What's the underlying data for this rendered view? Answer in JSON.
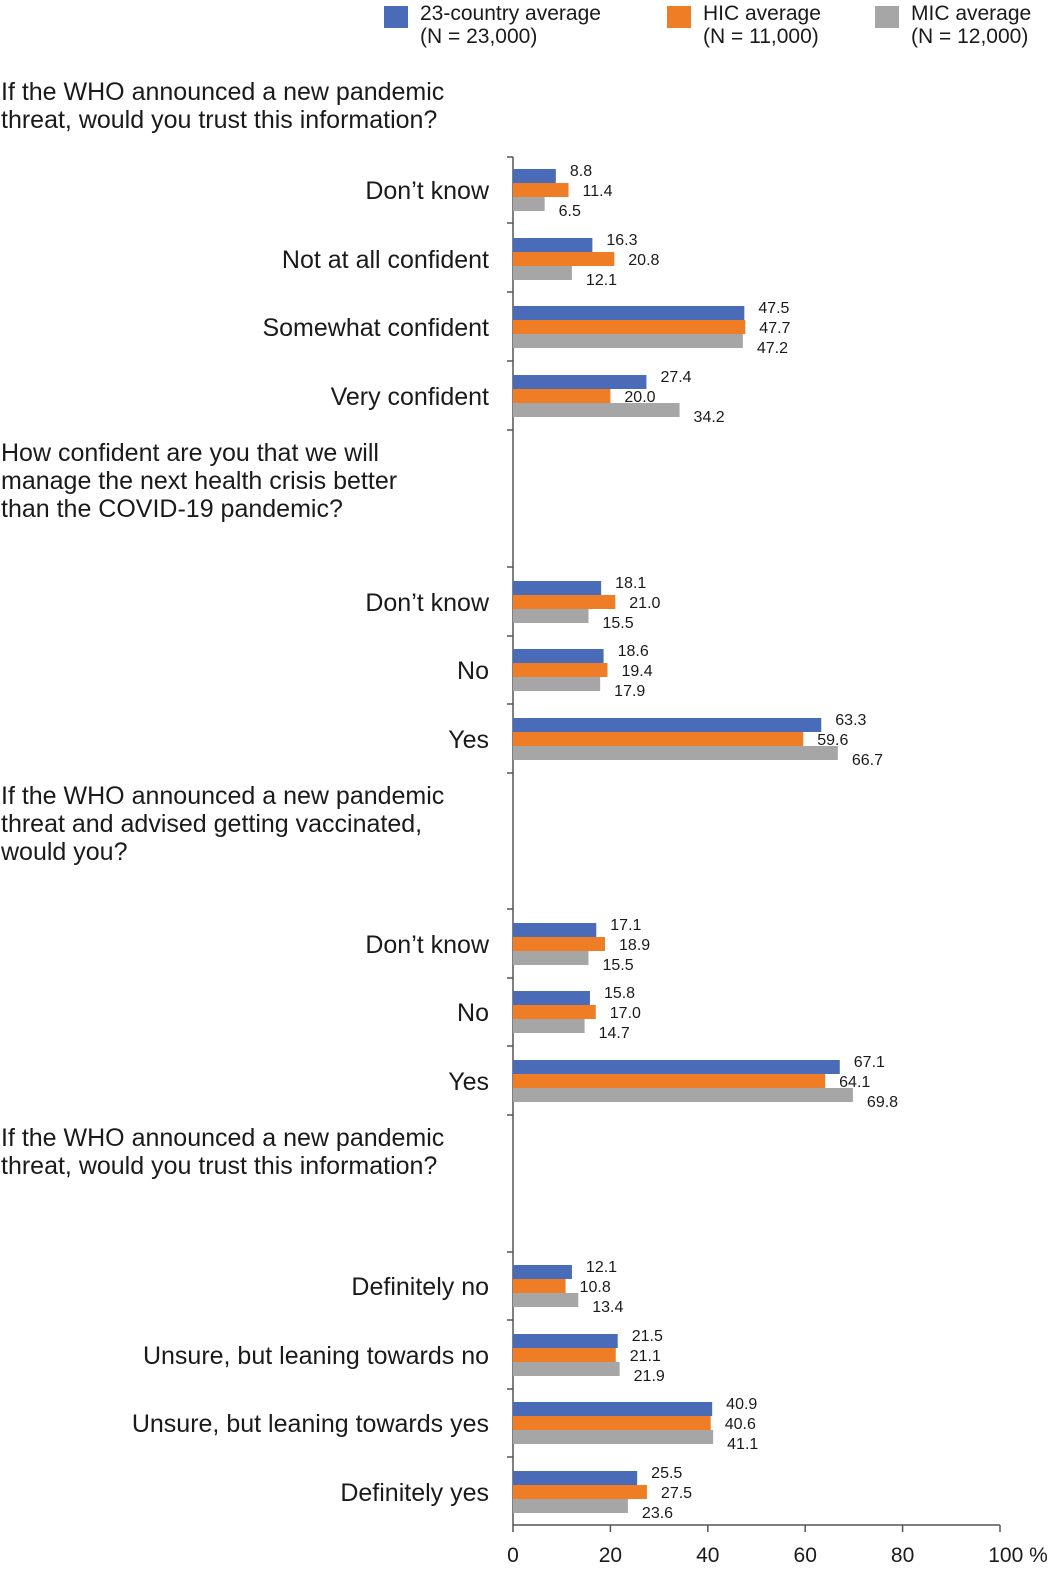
{
  "chart_data": {
    "type": "bar",
    "orientation": "horizontal",
    "series": [
      {
        "name": "23-country average",
        "sample": "(N = 23,000)",
        "color": "#4a6bb8"
      },
      {
        "name": "HIC average",
        "sample": "(N = 11,000)",
        "color": "#ef7d26"
      },
      {
        "name": "MIC average",
        "sample": "(N = 12,000)",
        "color": "#a6a6a6"
      }
    ],
    "groups": [
      {
        "question": [
          "If the WHO announced a new pandemic",
          "threat, would you trust this information?"
        ],
        "categories": [
          {
            "label": "Don’t know",
            "values": [
              8.8,
              11.4,
              6.5
            ]
          },
          {
            "label": "Not at all confident",
            "values": [
              16.3,
              20.8,
              12.1
            ]
          },
          {
            "label": "Somewhat confident",
            "values": [
              47.5,
              47.7,
              47.2
            ]
          },
          {
            "label": "Very confident",
            "values": [
              27.4,
              20.0,
              34.2
            ]
          }
        ]
      },
      {
        "question": [
          "How confident are you that we will",
          "manage the next health crisis better",
          "than the COVID-19 pandemic?"
        ],
        "categories": [
          {
            "label": "Don’t know",
            "values": [
              18.1,
              21.0,
              15.5
            ]
          },
          {
            "label": "No",
            "values": [
              18.6,
              19.4,
              17.9
            ]
          },
          {
            "label": "Yes",
            "values": [
              63.3,
              59.6,
              66.7
            ]
          }
        ]
      },
      {
        "question": [
          "If the WHO announced a new pandemic",
          "threat and advised getting vaccinated,",
          "would you?"
        ],
        "categories": [
          {
            "label": "Don’t know",
            "values": [
              17.1,
              18.9,
              15.5
            ]
          },
          {
            "label": "No",
            "values": [
              15.8,
              17.0,
              14.7
            ]
          },
          {
            "label": "Yes",
            "values": [
              67.1,
              64.1,
              69.8
            ]
          }
        ]
      },
      {
        "question": [
          "If the WHO announced a new pandemic",
          "threat, would you trust this information?"
        ],
        "categories": [
          {
            "label": "Definitely no",
            "values": [
              12.1,
              10.8,
              13.4
            ]
          },
          {
            "label": "Unsure, but leaning towards no",
            "values": [
              21.5,
              21.1,
              21.9
            ]
          },
          {
            "label": "Unsure, but leaning towards yes",
            "values": [
              40.9,
              40.6,
              41.1
            ]
          },
          {
            "label": "Definitely yes",
            "values": [
              25.5,
              27.5,
              23.6
            ]
          }
        ]
      }
    ],
    "xlim": [
      0,
      100
    ],
    "xticks": [
      "0",
      "20",
      "40",
      "60",
      "80",
      "100 %"
    ],
    "legend_position": "top-right",
    "grid": false
  }
}
